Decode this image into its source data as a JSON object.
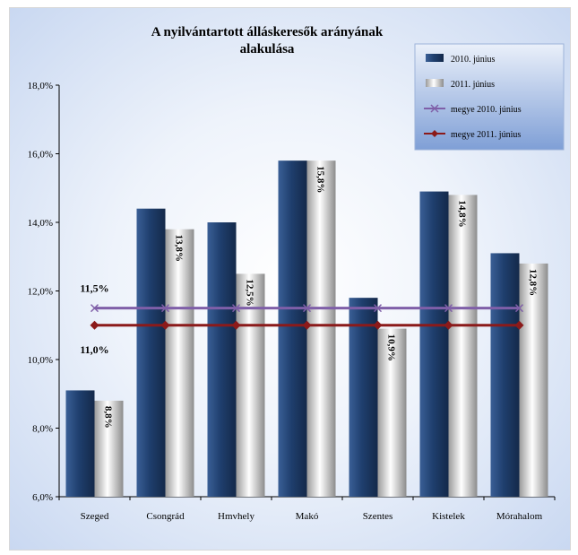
{
  "chart_data": {
    "type": "bar",
    "title_line1": "A nyilvántartott álláskeresők arányának",
    "title_line2": "alakulása",
    "categories": [
      "Szeged",
      "Csongrád",
      "Hmvhely",
      "Makó",
      "Szentes",
      "Kistelek",
      "Mórahalom"
    ],
    "series": [
      {
        "name": "2010. június",
        "kind": "bar",
        "color": "#1f3f6e",
        "values": [
          9.1,
          14.4,
          14.0,
          15.8,
          11.8,
          14.9,
          13.1
        ]
      },
      {
        "name": "2011. június",
        "kind": "bar",
        "color": "#d9d9d9",
        "values": [
          8.8,
          13.8,
          12.5,
          15.8,
          10.9,
          14.8,
          12.8
        ],
        "data_labels": [
          "8,8%",
          "13,8%",
          "12,5%",
          "15,8%",
          "10,9%",
          "14,8%",
          "12,8%"
        ]
      },
      {
        "name": "megye 2010. június",
        "kind": "line",
        "color": "#7f5fa8",
        "marker": "x",
        "values": [
          11.5,
          11.5,
          11.5,
          11.5,
          11.5,
          11.5,
          11.5
        ],
        "label": "11,5%"
      },
      {
        "name": "megye 2011. június",
        "kind": "line",
        "color": "#8b1a1a",
        "marker": "diamond",
        "values": [
          11.0,
          11.0,
          11.0,
          11.0,
          11.0,
          11.0,
          11.0
        ],
        "label": "11,0%"
      }
    ],
    "ylim": [
      6.0,
      18.0
    ],
    "yticks": [
      6.0,
      8.0,
      10.0,
      12.0,
      14.0,
      16.0,
      18.0
    ],
    "ytick_labels": [
      "6,0%",
      "8,0%",
      "10,0%",
      "12,0%",
      "14,0%",
      "16,0%",
      "18,0%"
    ],
    "grid": false,
    "legend_position": "top-right"
  }
}
